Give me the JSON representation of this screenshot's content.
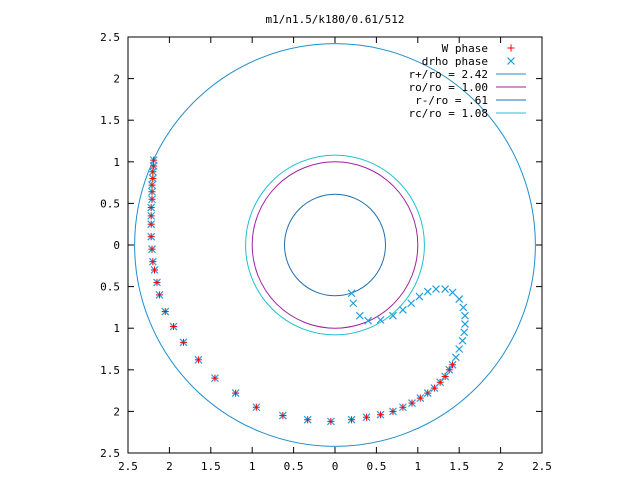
{
  "chart_data": {
    "type": "scatter",
    "title": "m1/n1.5/k180/0.61/512",
    "xlabel": "",
    "ylabel": "",
    "xlim": [
      -2.5,
      2.5
    ],
    "ylim": [
      -2.5,
      2.5
    ],
    "x_ticks": [
      "2.5",
      "2",
      "1.5",
      "1",
      "0.5",
      "0",
      "0.5",
      "1",
      "1.5",
      "2",
      "2.5"
    ],
    "y_ticks": [
      "2.5",
      "2",
      "1.5",
      "1",
      "0.5",
      "0",
      "0.5",
      "1",
      "1.5",
      "2",
      "2.5"
    ],
    "grid": false,
    "legend_position": "top-right",
    "series": [
      {
        "name": "W phase",
        "marker": "plus",
        "color": "#ff0000",
        "points": [
          [
            -2.19,
            1.02
          ],
          [
            -2.19,
            0.95
          ],
          [
            -2.2,
            0.88
          ],
          [
            -2.2,
            0.8
          ],
          [
            -2.21,
            0.72
          ],
          [
            -2.21,
            0.64
          ],
          [
            -2.21,
            0.55
          ],
          [
            -2.22,
            0.45
          ],
          [
            -2.22,
            0.35
          ],
          [
            -2.22,
            0.25
          ],
          [
            -2.22,
            0.1
          ],
          [
            -2.21,
            -0.05
          ],
          [
            -2.2,
            -0.2
          ],
          [
            -2.18,
            -0.3
          ],
          [
            -2.15,
            -0.45
          ],
          [
            -2.12,
            -0.6
          ],
          [
            -2.05,
            -0.8
          ],
          [
            -1.95,
            -0.98
          ],
          [
            -1.83,
            -1.17
          ],
          [
            -1.65,
            -1.38
          ],
          [
            -1.45,
            -1.6
          ],
          [
            -1.2,
            -1.78
          ],
          [
            -0.95,
            -1.95
          ],
          [
            -0.63,
            -2.05
          ],
          [
            -0.33,
            -2.1
          ],
          [
            -0.05,
            -2.12
          ],
          [
            0.2,
            -2.1
          ],
          [
            0.38,
            -2.07
          ],
          [
            0.55,
            -2.04
          ],
          [
            0.7,
            -2.0
          ],
          [
            0.82,
            -1.95
          ],
          [
            0.93,
            -1.9
          ],
          [
            1.03,
            -1.84
          ],
          [
            1.12,
            -1.78
          ],
          [
            1.2,
            -1.72
          ],
          [
            1.27,
            -1.65
          ],
          [
            1.33,
            -1.58
          ],
          [
            1.38,
            -1.5
          ],
          [
            1.42,
            -1.44
          ]
        ]
      },
      {
        "name": "drho phase",
        "marker": "cross",
        "color": "#1f9fdf",
        "points": [
          [
            -2.19,
            1.02
          ],
          [
            -2.19,
            0.95
          ],
          [
            -2.2,
            0.88
          ],
          [
            -2.2,
            0.8
          ],
          [
            -2.21,
            0.72
          ],
          [
            -2.21,
            0.64
          ],
          [
            -2.21,
            0.55
          ],
          [
            -2.22,
            0.45
          ],
          [
            -2.22,
            0.35
          ],
          [
            -2.22,
            0.25
          ],
          [
            -2.22,
            0.1
          ],
          [
            -2.21,
            -0.05
          ],
          [
            -2.2,
            -0.2
          ],
          [
            -2.18,
            -0.3
          ],
          [
            -2.15,
            -0.45
          ],
          [
            -2.12,
            -0.6
          ],
          [
            -2.05,
            -0.8
          ],
          [
            -1.95,
            -0.98
          ],
          [
            -1.83,
            -1.17
          ],
          [
            -1.65,
            -1.38
          ],
          [
            -1.45,
            -1.6
          ],
          [
            -1.2,
            -1.78
          ],
          [
            -0.95,
            -1.95
          ],
          [
            -0.63,
            -2.05
          ],
          [
            -0.33,
            -2.1
          ],
          [
            -0.05,
            -2.12
          ],
          [
            0.2,
            -2.1
          ],
          [
            0.38,
            -2.07
          ],
          [
            0.55,
            -2.04
          ],
          [
            0.7,
            -2.0
          ],
          [
            0.82,
            -1.95
          ],
          [
            0.93,
            -1.9
          ],
          [
            1.03,
            -1.84
          ],
          [
            1.12,
            -1.78
          ],
          [
            1.2,
            -1.72
          ],
          [
            1.27,
            -1.65
          ],
          [
            1.33,
            -1.58
          ],
          [
            1.38,
            -1.5
          ],
          [
            1.42,
            -1.44
          ],
          [
            1.46,
            -1.35
          ],
          [
            1.5,
            -1.25
          ],
          [
            1.54,
            -1.15
          ],
          [
            1.56,
            -1.05
          ],
          [
            1.57,
            -0.95
          ],
          [
            1.57,
            -0.85
          ],
          [
            1.55,
            -0.75
          ],
          [
            1.5,
            -0.65
          ],
          [
            1.42,
            -0.57
          ],
          [
            1.33,
            -0.53
          ],
          [
            1.22,
            -0.53
          ],
          [
            1.12,
            -0.56
          ],
          [
            1.02,
            -0.62
          ],
          [
            0.92,
            -0.7
          ],
          [
            0.82,
            -0.78
          ],
          [
            0.7,
            -0.85
          ],
          [
            0.55,
            -0.9
          ],
          [
            0.4,
            -0.91
          ],
          [
            0.3,
            -0.85
          ],
          [
            0.22,
            -0.7
          ],
          [
            0.2,
            -0.58
          ]
        ]
      }
    ],
    "circles": [
      {
        "name": "r+/ro = 2.42",
        "r": 2.42,
        "color": "#1f8fcf"
      },
      {
        "name": "ro/ro = 1.00",
        "r": 1.0,
        "color": "#a0209f"
      },
      {
        "name": "r-/ro = .61",
        "r": 0.61,
        "color": "#1f6faf"
      },
      {
        "name": "rc/ro = 1.08",
        "r": 1.08,
        "color": "#20c0d0"
      }
    ]
  }
}
